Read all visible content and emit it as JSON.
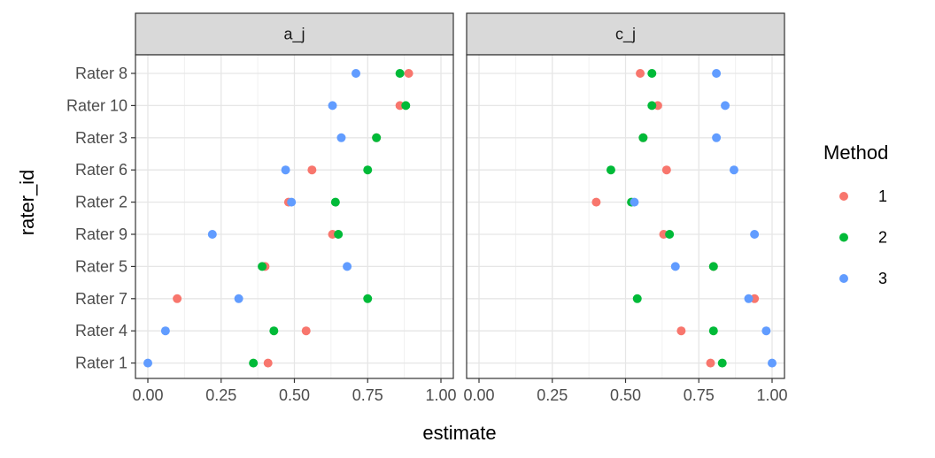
{
  "chart_data": {
    "type": "scatter",
    "xlabel": "estimate",
    "ylabel": "rater_id",
    "xlim": [
      0,
      1
    ],
    "x_ticks": [
      "0.00",
      "0.25",
      "0.50",
      "0.75",
      "1.00"
    ],
    "categories": [
      "Rater 8",
      "Rater 10",
      "Rater 3",
      "Rater 6",
      "Rater 2",
      "Rater 9",
      "Rater 5",
      "Rater 7",
      "Rater 4",
      "Rater 1"
    ],
    "grid": true,
    "legend": {
      "title": "Method",
      "position": "right",
      "entries": [
        {
          "label": "1",
          "color": "#F8766D"
        },
        {
          "label": "2",
          "color": "#00BA38"
        },
        {
          "label": "3",
          "color": "#619CFF"
        }
      ]
    },
    "panels": [
      {
        "label": "a_j",
        "series": [
          {
            "method": "1",
            "values": [
              0.89,
              0.86,
              0.78,
              0.56,
              0.48,
              0.63,
              0.4,
              0.1,
              0.54,
              0.41
            ]
          },
          {
            "method": "2",
            "values": [
              0.86,
              0.88,
              0.78,
              0.75,
              0.64,
              0.65,
              0.39,
              0.75,
              0.43,
              0.36
            ]
          },
          {
            "method": "3",
            "values": [
              0.71,
              0.63,
              0.66,
              0.47,
              0.49,
              0.22,
              0.68,
              0.31,
              0.06,
              0.0
            ]
          }
        ]
      },
      {
        "label": "c_j",
        "series": [
          {
            "method": "1",
            "values": [
              0.55,
              0.61,
              0.56,
              0.64,
              0.4,
              0.63,
              0.8,
              0.94,
              0.69,
              0.79
            ]
          },
          {
            "method": "2",
            "values": [
              0.59,
              0.59,
              0.56,
              0.45,
              0.52,
              0.65,
              0.8,
              0.54,
              0.8,
              0.83
            ]
          },
          {
            "method": "3",
            "values": [
              0.81,
              0.84,
              0.81,
              0.87,
              0.53,
              0.94,
              0.67,
              0.92,
              0.98,
              1.0
            ]
          }
        ]
      }
    ]
  }
}
